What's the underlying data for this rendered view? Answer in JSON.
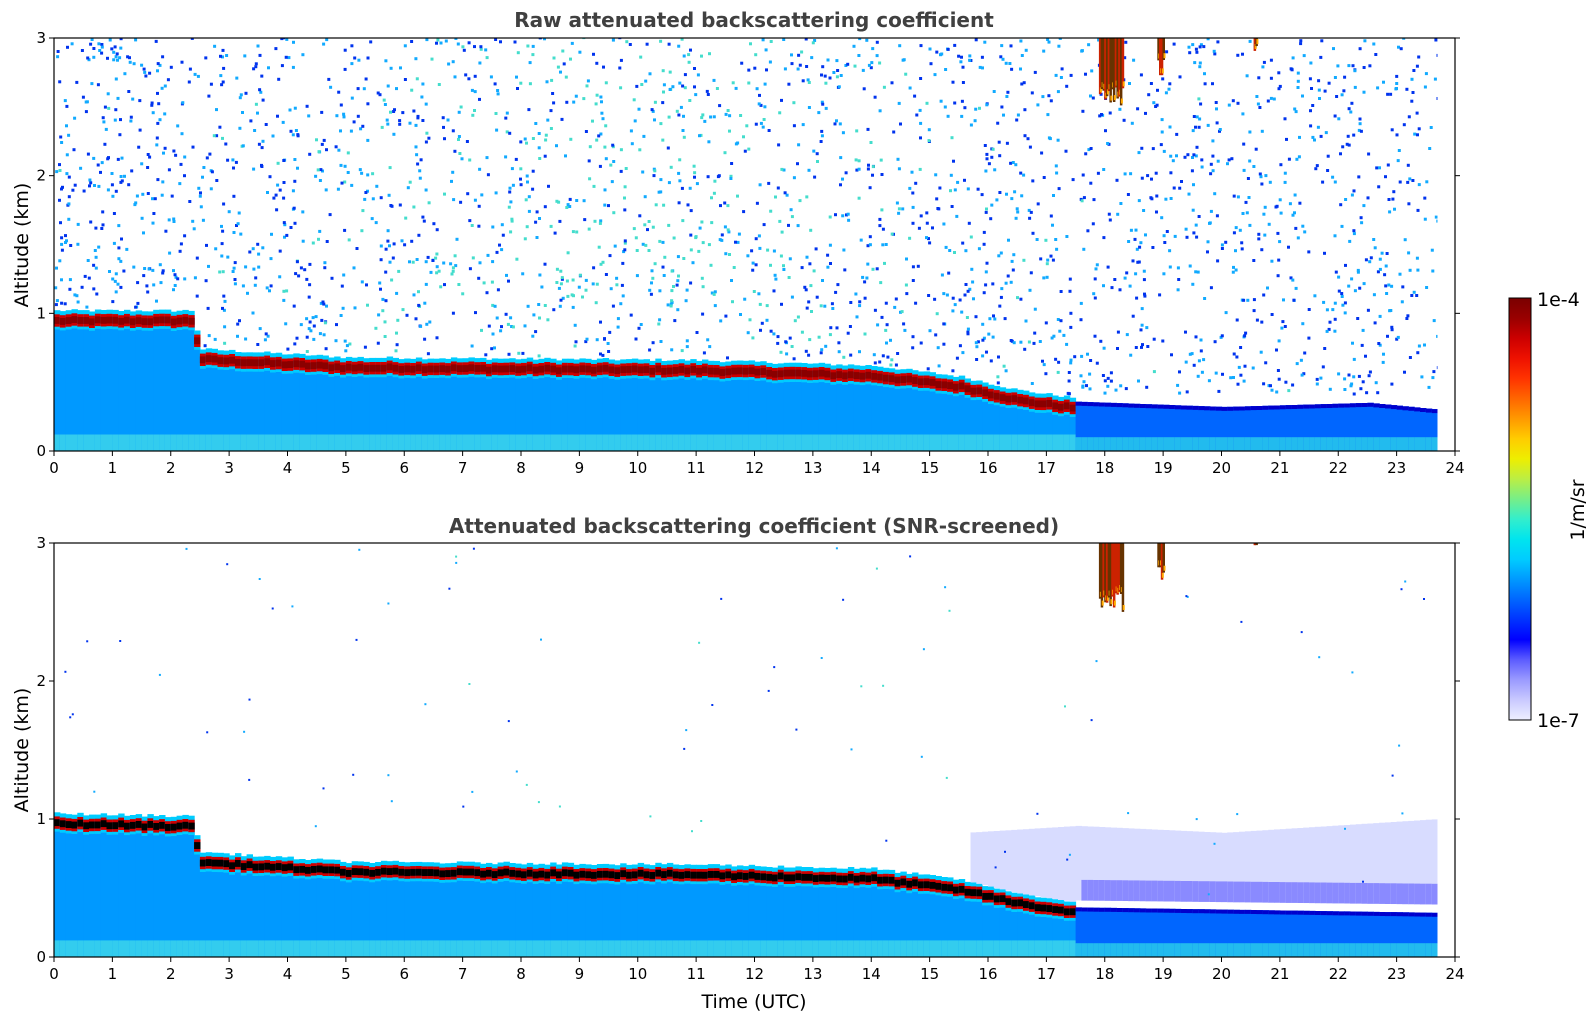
{
  "chart_data": [
    {
      "type": "heatmap",
      "title": "Raw attenuated backscattering coefficient",
      "xlabel": "",
      "ylabel": "Altitude (km)",
      "xlim": [
        0,
        24
      ],
      "ylim": [
        0,
        3
      ],
      "xticks": [
        "0",
        "1",
        "2",
        "3",
        "4",
        "5",
        "6",
        "7",
        "8",
        "9",
        "10",
        "11",
        "12",
        "13",
        "14",
        "15",
        "16",
        "17",
        "18",
        "19",
        "20",
        "21",
        "22",
        "23",
        "24"
      ],
      "yticks": [
        "0",
        "1",
        "2",
        "3"
      ],
      "data_end_time": 23.7,
      "layer_top_km": [
        [
          0,
          1.0
        ],
        [
          2.3,
          1.0
        ],
        [
          2.5,
          0.72
        ],
        [
          5,
          0.66
        ],
        [
          8,
          0.65
        ],
        [
          11,
          0.64
        ],
        [
          14,
          0.6
        ],
        [
          15.5,
          0.52
        ],
        [
          16.5,
          0.42
        ],
        [
          17.4,
          0.37
        ]
      ],
      "noise_floor_top_km": [
        [
          17.4,
          0.36
        ],
        [
          20,
          0.32
        ],
        [
          22.5,
          0.35
        ],
        [
          23.7,
          0.3
        ]
      ],
      "high_clouds": [
        {
          "t0": 17.9,
          "t1": 18.3,
          "base_km": 2.5
        },
        {
          "t0": 18.9,
          "t1": 19.0,
          "base_km": 2.7
        },
        {
          "t0": 20.55,
          "t1": 20.6,
          "base_km": 2.85
        }
      ],
      "noise": "dense"
    },
    {
      "type": "heatmap",
      "title": "Attenuated backscattering coefficient (SNR-screened)",
      "xlabel": "Time (UTC)",
      "ylabel": "Altitude (km)",
      "xlim": [
        0,
        24
      ],
      "ylim": [
        0,
        3
      ],
      "xticks": [
        "0",
        "1",
        "2",
        "3",
        "4",
        "5",
        "6",
        "7",
        "8",
        "9",
        "10",
        "11",
        "12",
        "13",
        "14",
        "15",
        "16",
        "17",
        "18",
        "19",
        "20",
        "21",
        "22",
        "23",
        "24"
      ],
      "yticks": [
        "0",
        "1",
        "2",
        "3"
      ],
      "data_end_time": 23.7,
      "layer_top_km": [
        [
          0,
          1.02
        ],
        [
          2.3,
          1.0
        ],
        [
          2.5,
          0.74
        ],
        [
          5,
          0.67
        ],
        [
          8,
          0.66
        ],
        [
          11,
          0.65
        ],
        [
          14,
          0.62
        ],
        [
          15.5,
          0.54
        ],
        [
          16.5,
          0.44
        ],
        [
          17.4,
          0.38
        ]
      ],
      "screened_haze_top_km": [
        [
          15.6,
          0.9
        ],
        [
          17.5,
          0.95
        ],
        [
          20,
          0.9
        ],
        [
          23.7,
          1.0
        ]
      ],
      "high_clouds": [
        {
          "t0": 17.9,
          "t1": 18.3,
          "base_km": 2.5
        },
        {
          "t0": 18.9,
          "t1": 19.0,
          "base_km": 2.7
        },
        {
          "t0": 20.55,
          "t1": 20.6,
          "base_km": 2.85
        }
      ],
      "noise": "sparse"
    }
  ],
  "colorbar": {
    "label": "1/m/sr",
    "max_label": "1e-4",
    "min_label": "1e-7",
    "colors": [
      "#eef0ff",
      "#c9c9ff",
      "#9a9aff",
      "#5c5cff",
      "#0000ff",
      "#0033ff",
      "#0066ff",
      "#0099ff",
      "#00ccff",
      "#00e5ee",
      "#33eecc",
      "#77ee88",
      "#bbee44",
      "#eeee00",
      "#ffcc00",
      "#ff9900",
      "#ff6600",
      "#ff3300",
      "#ee1100",
      "#cc0000",
      "#990000",
      "#7a0000"
    ]
  }
}
